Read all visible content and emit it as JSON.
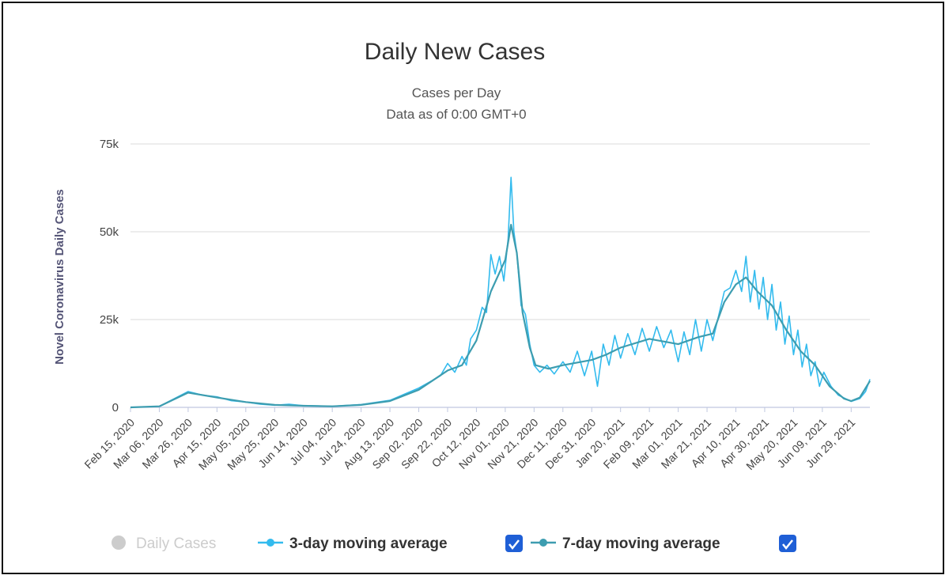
{
  "chart_data": {
    "type": "line",
    "title": "Daily New Cases",
    "subtitle_lines": [
      "Cases per Day",
      "Data as of 0:00 GMT+0"
    ],
    "ylabel": "Novel Coronavirus Daily Cases",
    "ylim": [
      0,
      75000
    ],
    "yticks": [
      {
        "value": 0,
        "label": "0"
      },
      {
        "value": 25000,
        "label": "25k"
      },
      {
        "value": 50000,
        "label": "50k"
      },
      {
        "value": 75000,
        "label": "75k"
      }
    ],
    "x_start": "2020-02-15",
    "x_end": "2021-07-12",
    "xtick_labels": [
      "Feb 15, 2020",
      "Mar 06, 2020",
      "Mar 26, 2020",
      "Apr 15, 2020",
      "May 05, 2020",
      "May 25, 2020",
      "Jun 14, 2020",
      "Jul 04, 2020",
      "Jul 24, 2020",
      "Aug 13, 2020",
      "Sep 02, 2020",
      "Sep 22, 2020",
      "Oct 12, 2020",
      "Nov 01, 2020",
      "Nov 21, 2020",
      "Dec 11, 2020",
      "Dec 31, 2020",
      "Jan 20, 2021",
      "Feb 09, 2021",
      "Mar 01, 2021",
      "Mar 21, 2021",
      "Apr 10, 2021",
      "Apr 30, 2021",
      "May 20, 2021",
      "Jun 09, 2021",
      "Jun 29, 2021"
    ],
    "grid": true,
    "legend_position": "bottom",
    "series": [
      {
        "name": "3-day moving average",
        "color": "#33bbee",
        "checked": true,
        "points": [
          [
            "2020-02-15",
            0
          ],
          [
            "2020-03-06",
            300
          ],
          [
            "2020-03-26",
            4500
          ],
          [
            "2020-04-05",
            3500
          ],
          [
            "2020-04-15",
            3000
          ],
          [
            "2020-04-25",
            1900
          ],
          [
            "2020-05-05",
            1500
          ],
          [
            "2020-05-15",
            900
          ],
          [
            "2020-05-25",
            600
          ],
          [
            "2020-06-04",
            900
          ],
          [
            "2020-06-14",
            500
          ],
          [
            "2020-06-24",
            400
          ],
          [
            "2020-07-04",
            300
          ],
          [
            "2020-07-24",
            800
          ],
          [
            "2020-08-13",
            2000
          ],
          [
            "2020-09-02",
            5500
          ],
          [
            "2020-09-12",
            7800
          ],
          [
            "2020-09-17",
            9000
          ],
          [
            "2020-09-22",
            12500
          ],
          [
            "2020-09-27",
            10000
          ],
          [
            "2020-10-02",
            14500
          ],
          [
            "2020-10-05",
            12000
          ],
          [
            "2020-10-08",
            19500
          ],
          [
            "2020-10-12",
            22000
          ],
          [
            "2020-10-16",
            28500
          ],
          [
            "2020-10-19",
            27000
          ],
          [
            "2020-10-22",
            43500
          ],
          [
            "2020-10-25",
            38000
          ],
          [
            "2020-10-28",
            43000
          ],
          [
            "2020-10-31",
            36000
          ],
          [
            "2020-11-03",
            48000
          ],
          [
            "2020-11-05",
            65500
          ],
          [
            "2020-11-07",
            50000
          ],
          [
            "2020-11-09",
            44000
          ],
          [
            "2020-11-12",
            29000
          ],
          [
            "2020-11-15",
            26500
          ],
          [
            "2020-11-18",
            18000
          ],
          [
            "2020-11-21",
            12000
          ],
          [
            "2020-11-25",
            10000
          ],
          [
            "2020-11-30",
            12000
          ],
          [
            "2020-12-05",
            9500
          ],
          [
            "2020-12-11",
            13000
          ],
          [
            "2020-12-16",
            10000
          ],
          [
            "2020-12-21",
            16000
          ],
          [
            "2020-12-26",
            9000
          ],
          [
            "2020-12-31",
            16000
          ],
          [
            "2021-01-04",
            6000
          ],
          [
            "2021-01-08",
            18000
          ],
          [
            "2021-01-12",
            12000
          ],
          [
            "2021-01-16",
            20500
          ],
          [
            "2021-01-20",
            14000
          ],
          [
            "2021-01-25",
            21000
          ],
          [
            "2021-01-30",
            15000
          ],
          [
            "2021-02-04",
            22500
          ],
          [
            "2021-02-09",
            16000
          ],
          [
            "2021-02-14",
            23000
          ],
          [
            "2021-02-19",
            17000
          ],
          [
            "2021-02-24",
            22000
          ],
          [
            "2021-03-01",
            13000
          ],
          [
            "2021-03-05",
            21500
          ],
          [
            "2021-03-09",
            15000
          ],
          [
            "2021-03-13",
            25000
          ],
          [
            "2021-03-17",
            16000
          ],
          [
            "2021-03-21",
            25000
          ],
          [
            "2021-03-25",
            19000
          ],
          [
            "2021-03-29",
            26000
          ],
          [
            "2021-04-02",
            33000
          ],
          [
            "2021-04-06",
            34000
          ],
          [
            "2021-04-10",
            39000
          ],
          [
            "2021-04-14",
            33000
          ],
          [
            "2021-04-17",
            43000
          ],
          [
            "2021-04-20",
            30000
          ],
          [
            "2021-04-23",
            39000
          ],
          [
            "2021-04-26",
            28000
          ],
          [
            "2021-04-29",
            37000
          ],
          [
            "2021-05-02",
            25000
          ],
          [
            "2021-05-05",
            35000
          ],
          [
            "2021-05-08",
            22000
          ],
          [
            "2021-05-11",
            30000
          ],
          [
            "2021-05-14",
            18000
          ],
          [
            "2021-05-17",
            26000
          ],
          [
            "2021-05-20",
            15000
          ],
          [
            "2021-05-23",
            22000
          ],
          [
            "2021-05-26",
            11500
          ],
          [
            "2021-05-29",
            18000
          ],
          [
            "2021-06-01",
            9000
          ],
          [
            "2021-06-04",
            13000
          ],
          [
            "2021-06-07",
            6000
          ],
          [
            "2021-06-10",
            10000
          ],
          [
            "2021-06-15",
            6000
          ],
          [
            "2021-06-20",
            3500
          ],
          [
            "2021-06-29",
            1700
          ],
          [
            "2021-07-05",
            2500
          ],
          [
            "2021-07-09",
            4500
          ],
          [
            "2021-07-12",
            8000
          ]
        ]
      },
      {
        "name": "7-day moving average",
        "color": "#3d9db0",
        "checked": true,
        "points": [
          [
            "2020-02-15",
            0
          ],
          [
            "2020-03-06",
            300
          ],
          [
            "2020-03-26",
            4200
          ],
          [
            "2020-04-15",
            2800
          ],
          [
            "2020-05-05",
            1500
          ],
          [
            "2020-05-25",
            700
          ],
          [
            "2020-06-14",
            450
          ],
          [
            "2020-07-04",
            300
          ],
          [
            "2020-07-24",
            700
          ],
          [
            "2020-08-13",
            1800
          ],
          [
            "2020-09-02",
            5000
          ],
          [
            "2020-09-22",
            10500
          ],
          [
            "2020-10-02",
            12000
          ],
          [
            "2020-10-12",
            19000
          ],
          [
            "2020-10-22",
            33000
          ],
          [
            "2020-11-01",
            42000
          ],
          [
            "2020-11-05",
            52000
          ],
          [
            "2020-11-09",
            44000
          ],
          [
            "2020-11-13",
            27000
          ],
          [
            "2020-11-18",
            17000
          ],
          [
            "2020-11-22",
            12000
          ],
          [
            "2020-12-01",
            11000
          ],
          [
            "2020-12-11",
            12000
          ],
          [
            "2020-12-31",
            13500
          ],
          [
            "2021-01-10",
            15000
          ],
          [
            "2021-01-20",
            17000
          ],
          [
            "2021-02-09",
            19500
          ],
          [
            "2021-03-01",
            18000
          ],
          [
            "2021-03-15",
            20000
          ],
          [
            "2021-03-25",
            21000
          ],
          [
            "2021-04-02",
            30000
          ],
          [
            "2021-04-10",
            35000
          ],
          [
            "2021-04-17",
            37000
          ],
          [
            "2021-04-25",
            33000
          ],
          [
            "2021-05-05",
            29000
          ],
          [
            "2021-05-15",
            22000
          ],
          [
            "2021-05-25",
            16000
          ],
          [
            "2021-06-04",
            12000
          ],
          [
            "2021-06-14",
            6000
          ],
          [
            "2021-06-24",
            2500
          ],
          [
            "2021-06-29",
            1800
          ],
          [
            "2021-07-05",
            2800
          ],
          [
            "2021-07-12",
            7500
          ]
        ]
      }
    ],
    "legend": [
      {
        "name": "Daily Cases",
        "color": "#cccccc",
        "enabled": false
      },
      {
        "name": "3-day moving average",
        "color": "#33bbee",
        "checked": true
      },
      {
        "name": "7-day moving average",
        "color": "#3d9db0",
        "checked": true
      }
    ],
    "checkbox_color": "#1f5fd6"
  }
}
